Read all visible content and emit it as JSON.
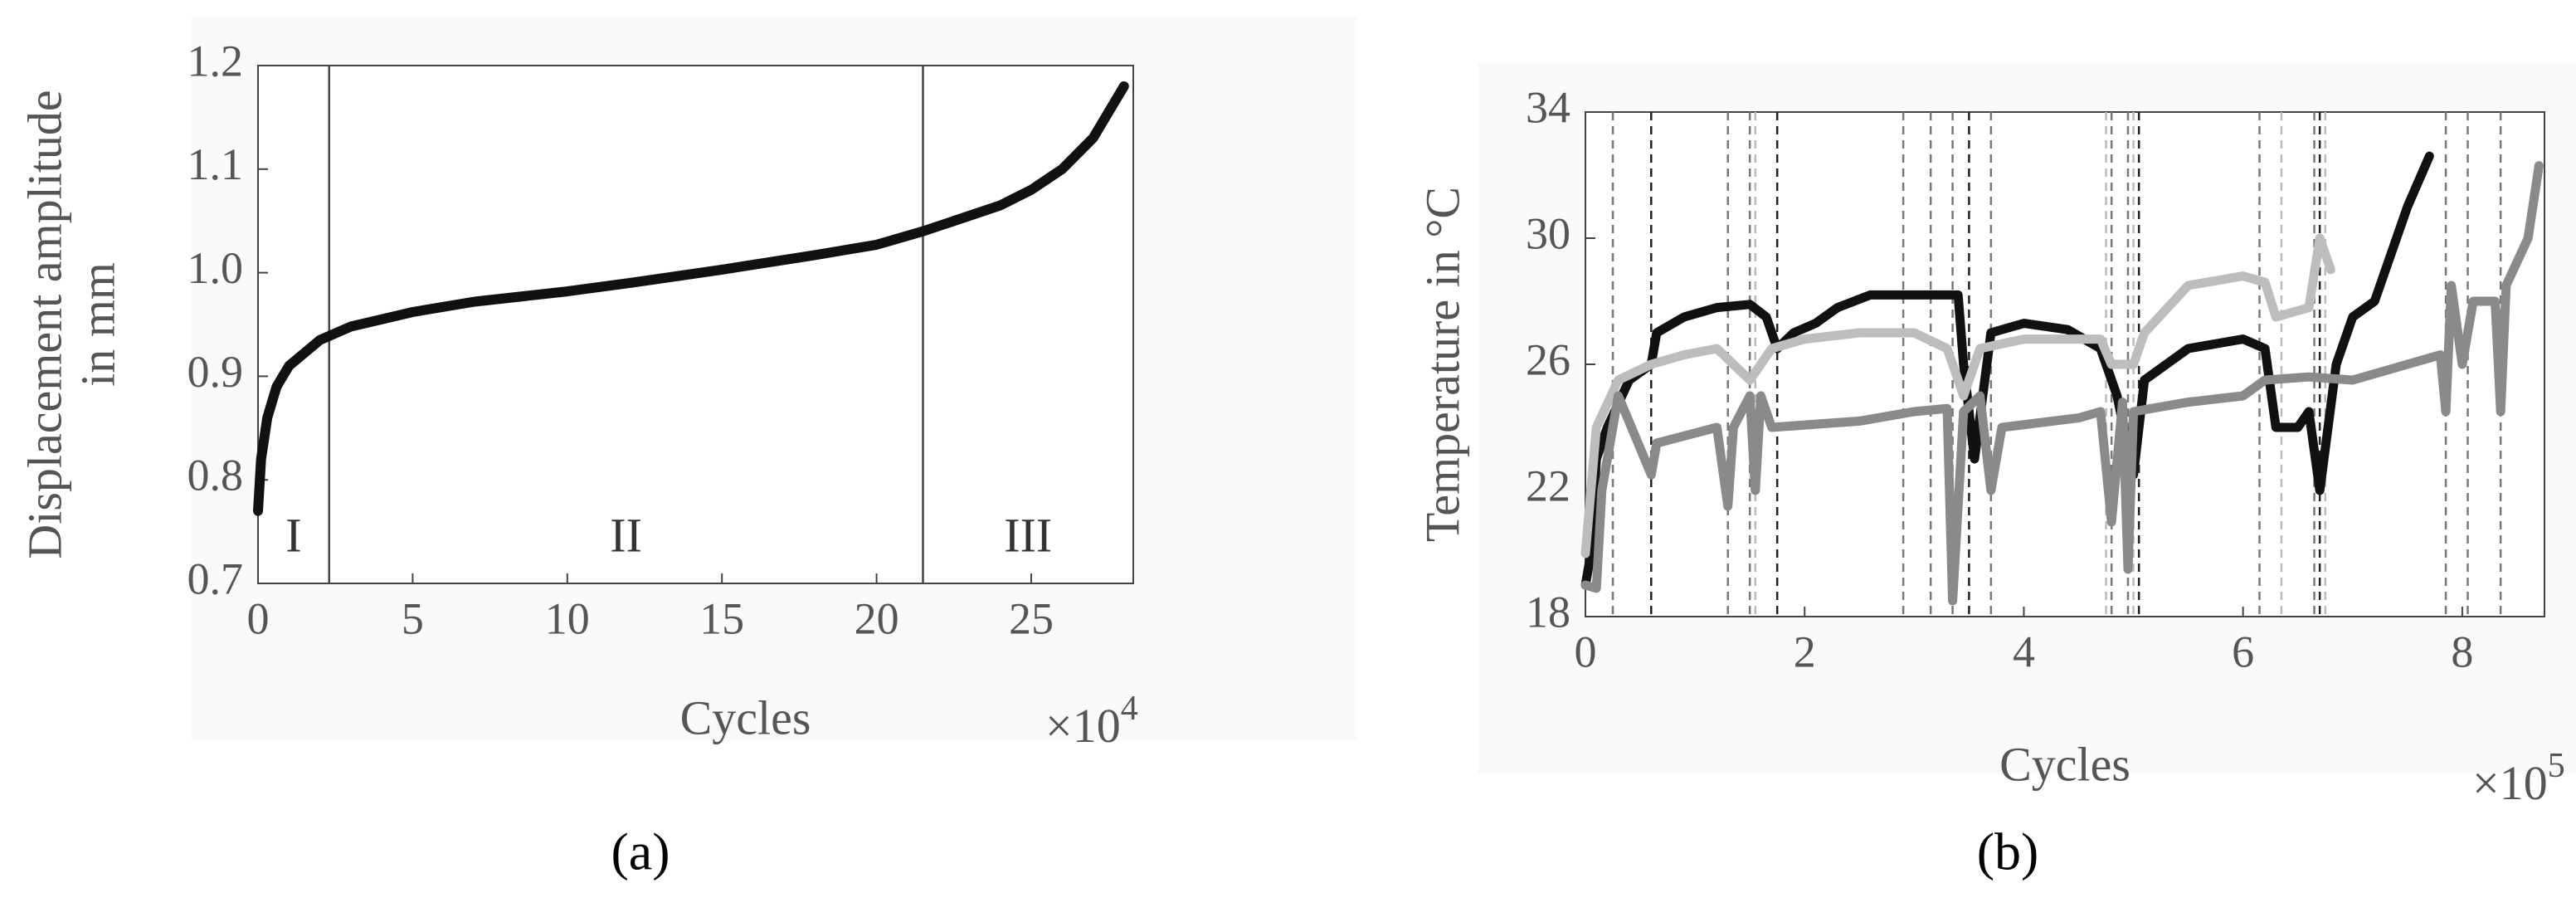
{
  "chart_data": [
    {
      "type": "line",
      "panel_label": "(a)",
      "x_label": "Cycles",
      "x_scale": {
        "base": "×10",
        "exponent": "4"
      },
      "y_label": [
        "Displacement amplitude",
        "in mm"
      ],
      "xlim": [
        0,
        28.3
      ],
      "xticks": [
        0,
        5,
        10,
        15,
        20,
        25
      ],
      "ylim": [
        0.7,
        1.2
      ],
      "yticks": [
        {
          "value": 0.7,
          "label": "0.7"
        },
        {
          "value": 0.8,
          "label": "0.8"
        },
        {
          "value": 0.9,
          "label": "0.9"
        },
        {
          "value": 1.0,
          "label": "1.0"
        },
        {
          "value": 1.1,
          "label": "1.1"
        },
        {
          "value": 1.2,
          "label": "1.2"
        }
      ],
      "stage_boundaries": [
        2.3,
        21.5
      ],
      "stage_labels": [
        "I",
        "II",
        "III"
      ],
      "boundary_color": "#444",
      "series": [
        {
          "color": "#111",
          "x": [
            0,
            0.1,
            0.3,
            0.6,
            1,
            2,
            3,
            5,
            7,
            10,
            12,
            15,
            18,
            20,
            21.5,
            23,
            24,
            25,
            26,
            27,
            28
          ],
          "values": [
            0.77,
            0.82,
            0.86,
            0.89,
            0.91,
            0.935,
            0.948,
            0.962,
            0.972,
            0.982,
            0.99,
            1.003,
            1.017,
            1.027,
            1.04,
            1.055,
            1.065,
            1.08,
            1.1,
            1.13,
            1.18
          ]
        }
      ]
    },
    {
      "type": "line",
      "panel_label": "(b)",
      "x_label": "Cycles",
      "x_scale": {
        "base": "×10",
        "exponent": "5"
      },
      "y_label": [
        "Temperature in °C"
      ],
      "xlim": [
        0,
        8.75
      ],
      "xticks": [
        0,
        2,
        4,
        6,
        8
      ],
      "ylim": [
        18,
        34
      ],
      "yticks": [
        18,
        22,
        26,
        30,
        34
      ],
      "vlines": [
        {
          "x": 0.25,
          "color": "#777"
        },
        {
          "x": 0.6,
          "color": "#222"
        },
        {
          "x": 1.3,
          "color": "#777"
        },
        {
          "x": 1.5,
          "color": "#777"
        },
        {
          "x": 1.55,
          "color": "#bbb"
        },
        {
          "x": 1.75,
          "color": "#222"
        },
        {
          "x": 2.9,
          "color": "#777"
        },
        {
          "x": 3.15,
          "color": "#777"
        },
        {
          "x": 3.35,
          "color": "#777"
        },
        {
          "x": 3.5,
          "color": "#222"
        },
        {
          "x": 3.7,
          "color": "#777"
        },
        {
          "x": 4.75,
          "color": "#bbb"
        },
        {
          "x": 4.8,
          "color": "#777"
        },
        {
          "x": 4.95,
          "color": "#777"
        },
        {
          "x": 5.0,
          "color": "#bbb"
        },
        {
          "x": 5.05,
          "color": "#222"
        },
        {
          "x": 6.15,
          "color": "#777"
        },
        {
          "x": 6.35,
          "color": "#bbb"
        },
        {
          "x": 6.65,
          "color": "#777"
        },
        {
          "x": 6.7,
          "color": "#222"
        },
        {
          "x": 6.75,
          "color": "#bbb"
        },
        {
          "x": 7.85,
          "color": "#777"
        },
        {
          "x": 8.05,
          "color": "#777"
        },
        {
          "x": 8.35,
          "color": "#777"
        }
      ],
      "series": [
        {
          "color": "#111",
          "x": [
            0,
            0.05,
            0.1,
            0.2,
            0.4,
            0.6,
            0.65,
            0.9,
            1.2,
            1.5,
            1.65,
            1.75,
            1.9,
            2.1,
            2.3,
            2.6,
            3.0,
            3.4,
            3.45,
            3.55,
            3.7,
            4.0,
            4.4,
            4.7,
            4.85,
            5.0,
            5.1,
            5.5,
            6.0,
            6.2,
            6.3,
            6.5,
            6.6,
            6.7,
            6.85,
            7.0,
            7.2,
            7.5,
            7.7
          ],
          "values": [
            19,
            20,
            23,
            24,
            25.5,
            26,
            27,
            27.5,
            27.8,
            27.9,
            27.5,
            26.5,
            27,
            27.3,
            27.8,
            28.2,
            28.2,
            28.2,
            26,
            23,
            27,
            27.3,
            27.1,
            26.5,
            25,
            22.5,
            25.5,
            26.5,
            26.8,
            26.5,
            24,
            24,
            24.5,
            22,
            26,
            27.5,
            28,
            31,
            32.6
          ]
        },
        {
          "color": "#bdbdbd",
          "x": [
            0,
            0.1,
            0.3,
            0.6,
            0.9,
            1.2,
            1.5,
            1.7,
            2.0,
            2.5,
            3.0,
            3.3,
            3.45,
            3.6,
            4.0,
            4.7,
            4.8,
            5.0,
            5.1,
            5.5,
            6.0,
            6.2,
            6.3,
            6.6,
            6.7,
            6.8
          ],
          "values": [
            20,
            24,
            25.5,
            26,
            26.3,
            26.5,
            25.5,
            26.5,
            26.8,
            27,
            27,
            26.5,
            25,
            26.5,
            26.8,
            26.8,
            26,
            26,
            27,
            28.5,
            28.8,
            28.6,
            27.5,
            27.8,
            30,
            29
          ]
        },
        {
          "color": "#8a8a8a",
          "x": [
            0,
            0.1,
            0.15,
            0.3,
            0.6,
            0.65,
            1.2,
            1.3,
            1.35,
            1.5,
            1.55,
            1.6,
            1.7,
            2.5,
            3.0,
            3.3,
            3.35,
            3.45,
            3.6,
            3.7,
            3.8,
            4.5,
            4.7,
            4.8,
            4.9,
            4.95,
            5.0,
            5.5,
            6.0,
            6.2,
            6.6,
            7.0,
            7.5,
            7.8,
            7.85,
            7.9,
            8.0,
            8.1,
            8.3,
            8.35,
            8.4,
            8.6,
            8.7
          ],
          "values": [
            19,
            18.9,
            22,
            25,
            22.5,
            23.5,
            24,
            21.5,
            24,
            25,
            22,
            25,
            24,
            24.2,
            24.5,
            24.6,
            18.5,
            24.5,
            25,
            22,
            24,
            24.3,
            24.5,
            21,
            24.8,
            19.5,
            24.5,
            24.8,
            25,
            25.5,
            25.6,
            25.5,
            26,
            26.3,
            24.5,
            28.5,
            26,
            28,
            28,
            24.5,
            28.5,
            30,
            32.3
          ]
        }
      ]
    }
  ]
}
